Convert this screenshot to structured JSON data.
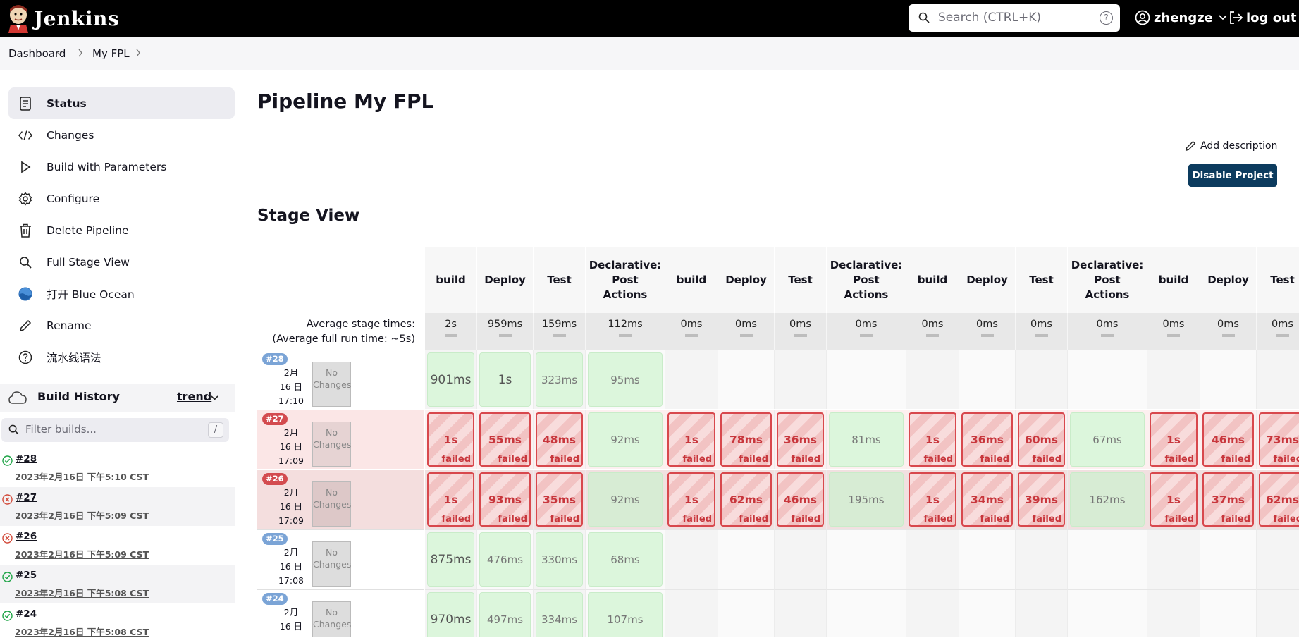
{
  "header": {
    "brand": "Jenkins",
    "search_placeholder": "Search (CTRL+K)",
    "search_help": "?",
    "username": "zhengze",
    "logout_label": "log out"
  },
  "breadcrumb": [
    "Dashboard",
    "My FPL"
  ],
  "sidebar": {
    "items": [
      {
        "label": "Status",
        "icon": "status-icon",
        "active": true
      },
      {
        "label": "Changes",
        "icon": "code-icon"
      },
      {
        "label": "Build with Parameters",
        "icon": "play-icon"
      },
      {
        "label": "Configure",
        "icon": "gear-icon"
      },
      {
        "label": "Delete Pipeline",
        "icon": "trash-icon"
      },
      {
        "label": "Full Stage View",
        "icon": "magnifier-icon"
      },
      {
        "label": "打开 Blue Ocean",
        "icon": "blue-ocean-icon"
      },
      {
        "label": "Rename",
        "icon": "pencil-icon"
      },
      {
        "label": "流水线语法",
        "icon": "help-icon"
      }
    ]
  },
  "build_history": {
    "title": "Build History",
    "trend_label": "trend",
    "filter_placeholder": "Filter builds...",
    "filter_shortcut": "/",
    "builds": [
      {
        "number": "#28",
        "date": "2023年2月16日 下午5:10 CST",
        "status": "success"
      },
      {
        "number": "#27",
        "date": "2023年2月16日 下午5:09 CST",
        "status": "failed"
      },
      {
        "number": "#26",
        "date": "2023年2月16日 下午5:09 CST",
        "status": "failed"
      },
      {
        "number": "#25",
        "date": "2023年2月16日 下午5:08 CST",
        "status": "success"
      },
      {
        "number": "#24",
        "date": "2023年2月16日 下午5:08 CST",
        "status": "success"
      }
    ]
  },
  "main": {
    "title": "Pipeline My FPL",
    "add_description": "Add description",
    "disable_button": "Disable Project",
    "stage_view_title": "Stage View"
  },
  "stage_view": {
    "average_label_1": "Average stage times:",
    "average_label_2a": "(Average ",
    "average_label_2b": "full",
    "average_label_2c": " run time: ~5s)",
    "stages": [
      {
        "name": "build",
        "avg": "2s"
      },
      {
        "name": "Deploy",
        "avg": "959ms"
      },
      {
        "name": "Test",
        "avg": "159ms"
      },
      {
        "name": "Declarative: Post Actions",
        "avg": "112ms"
      },
      {
        "name": "build",
        "avg": "0ms"
      },
      {
        "name": "Deploy",
        "avg": "0ms"
      },
      {
        "name": "Test",
        "avg": "0ms"
      },
      {
        "name": "Declarative: Post Actions",
        "avg": "0ms"
      },
      {
        "name": "build",
        "avg": "0ms"
      },
      {
        "name": "Deploy",
        "avg": "0ms"
      },
      {
        "name": "Test",
        "avg": "0ms"
      },
      {
        "name": "Declarative: Post Actions",
        "avg": "0ms"
      },
      {
        "name": "build",
        "avg": "0ms"
      },
      {
        "name": "Deploy",
        "avg": "0ms"
      },
      {
        "name": "Test",
        "avg": "0ms"
      }
    ],
    "no_changes": "No Changes",
    "failed_label": "failed",
    "runs": [
      {
        "tag": "#28",
        "date": "2月 16 日",
        "time": "17:10",
        "status": "success",
        "cells": [
          "901ms",
          "1s",
          "323ms",
          "95ms",
          "",
          "",
          "",
          "",
          "",
          "",
          "",
          "",
          "",
          "",
          ""
        ]
      },
      {
        "tag": "#27",
        "date": "2月 16 日",
        "time": "17:09",
        "status": "failed",
        "cells": [
          "1s",
          "55ms",
          "48ms",
          "92ms",
          "1s",
          "78ms",
          "36ms",
          "81ms",
          "1s",
          "36ms",
          "60ms",
          "67ms",
          "1s",
          "46ms",
          "73ms"
        ]
      },
      {
        "tag": "#26",
        "date": "2月 16 日",
        "time": "17:09",
        "status": "failed",
        "cells": [
          "1s",
          "93ms",
          "35ms",
          "92ms",
          "1s",
          "62ms",
          "46ms",
          "195ms",
          "1s",
          "34ms",
          "39ms",
          "162ms",
          "1s",
          "37ms",
          "62ms"
        ]
      },
      {
        "tag": "#25",
        "date": "2月 16 日",
        "time": "17:08",
        "status": "success",
        "cells": [
          "875ms",
          "476ms",
          "330ms",
          "68ms",
          "",
          "",
          "",
          "",
          "",
          "",
          "",
          "",
          "",
          "",
          ""
        ]
      },
      {
        "tag": "#24",
        "date": "2月 16 日",
        "time": "",
        "status": "success",
        "cells": [
          "970ms",
          "497ms",
          "334ms",
          "107ms",
          "",
          "",
          "",
          "",
          "",
          "",
          "",
          "",
          "",
          "",
          ""
        ]
      }
    ]
  },
  "colors": {
    "success_tag": "#7ba4d6",
    "failed_tag": "#d34b4f",
    "success_cell": "#dcf6dc",
    "failed_border": "#d8484d",
    "disable_button": "#0c3b5e"
  }
}
